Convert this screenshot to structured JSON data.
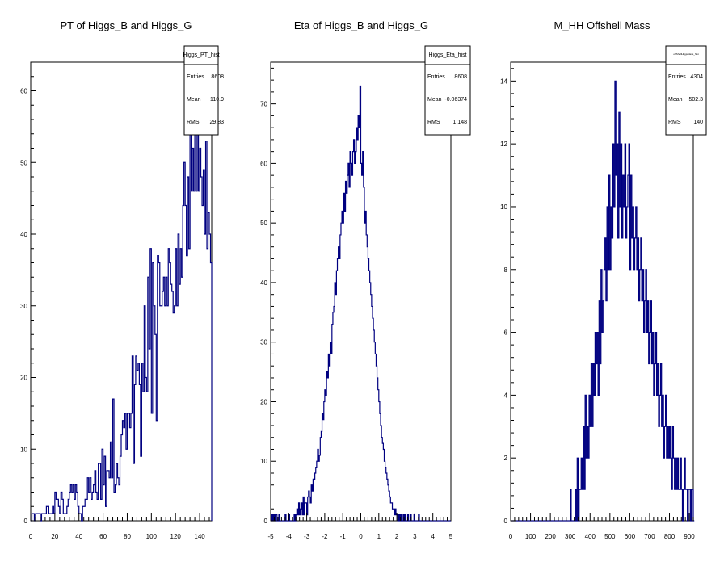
{
  "colors": {
    "histogram": "#000080",
    "frame": "#000000",
    "background": "#ffffff"
  },
  "chart_data": [
    {
      "type": "histogram",
      "title": "PT of Higgs_B and Higgs_G",
      "xlabel": "",
      "ylabel": "",
      "xlim": [
        0,
        150
      ],
      "ylim": [
        0,
        64
      ],
      "xticks": [
        0,
        20,
        40,
        60,
        80,
        100,
        120,
        140
      ],
      "yticks": [
        0,
        10,
        20,
        30,
        40,
        50,
        60
      ],
      "bins": {
        "start": 0,
        "width": 1
      },
      "values": [
        0,
        1,
        1,
        0,
        1,
        1,
        1,
        1,
        0,
        1,
        1,
        1,
        1,
        2,
        2,
        1,
        1,
        1,
        2,
        1,
        4,
        3,
        3,
        2,
        1,
        4,
        3,
        1,
        1,
        1,
        2,
        3,
        4,
        5,
        4,
        5,
        3,
        5,
        4,
        2,
        1,
        1,
        0,
        2,
        2,
        3,
        3,
        6,
        4,
        6,
        3,
        4,
        5,
        7,
        4,
        3,
        8,
        8,
        3,
        10,
        5,
        9,
        2,
        7,
        7,
        6,
        11,
        6,
        17,
        4,
        5,
        8,
        6,
        5,
        9,
        12,
        14,
        13,
        15,
        10,
        15,
        15,
        13,
        15,
        23,
        8,
        19,
        23,
        21,
        22,
        19,
        9,
        22,
        18,
        30,
        20,
        18,
        34,
        24,
        38,
        15,
        36,
        30,
        26,
        14,
        37,
        36,
        30,
        30,
        32,
        34,
        30,
        34,
        30,
        38,
        36,
        33,
        32,
        29,
        30,
        38,
        30,
        40,
        33,
        38,
        34,
        44,
        50,
        44,
        37,
        48,
        38,
        58,
        46,
        52,
        46,
        55,
        46,
        54,
        46,
        52,
        48,
        44,
        49,
        40,
        53,
        38,
        43,
        40,
        36
      ],
      "stats": {
        "name": "Higgs_PT_hist",
        "rows": [
          [
            "Entries",
            "8608"
          ],
          [
            "Mean",
            "110.9"
          ],
          [
            "RMS",
            "29.83"
          ]
        ]
      }
    },
    {
      "type": "histogram",
      "title": "Eta of Higgs_B and Higgs_G",
      "xlabel": "",
      "ylabel": "",
      "xlim": [
        -5,
        5
      ],
      "ylim": [
        0,
        77
      ],
      "xticks": [
        -5,
        -4,
        -3,
        -2,
        -1,
        0,
        1,
        2,
        3,
        4,
        5
      ],
      "yticks": [
        0,
        10,
        20,
        30,
        40,
        50,
        60,
        70
      ],
      "bins": {
        "start": -5,
        "width": 0.05
      },
      "values": [
        0,
        1,
        0,
        1,
        0,
        1,
        1,
        0,
        0,
        1,
        0,
        0,
        0,
        0,
        0,
        0,
        1,
        0,
        0,
        0,
        1,
        0,
        0,
        0,
        0,
        0,
        1,
        0,
        1,
        2,
        1,
        3,
        1,
        2,
        3,
        1,
        4,
        1,
        3,
        3,
        1,
        4,
        5,
        4,
        3,
        6,
        5,
        7,
        7,
        8,
        9,
        10,
        12,
        10,
        11,
        14,
        15,
        18,
        17,
        20,
        22,
        21,
        25,
        24,
        28,
        26,
        30,
        28,
        33,
        35,
        36,
        40,
        38,
        42,
        44,
        46,
        44,
        48,
        50,
        52,
        50,
        55,
        52,
        57,
        55,
        58,
        60,
        56,
        62,
        60,
        58,
        62,
        64,
        60,
        62,
        66,
        64,
        68,
        66,
        73,
        60,
        58,
        62,
        56,
        50,
        52,
        48,
        46,
        44,
        42,
        40,
        38,
        36,
        34,
        32,
        30,
        28,
        26,
        24,
        22,
        20,
        18,
        16,
        14,
        13,
        12,
        10,
        9,
        8,
        7,
        6,
        5,
        4,
        3,
        3,
        2,
        2,
        1,
        2,
        1,
        1,
        0,
        1,
        0,
        1,
        0,
        0,
        1,
        0,
        1,
        0,
        0,
        1,
        0,
        0,
        1,
        0,
        0,
        0,
        1,
        0,
        0,
        0,
        0,
        1,
        0,
        0,
        0,
        0,
        0,
        0,
        0,
        0,
        0,
        0,
        0,
        0,
        0,
        0,
        0,
        0,
        0,
        0,
        0,
        0,
        0,
        0,
        0,
        0,
        0,
        0,
        0,
        0,
        0,
        0,
        0,
        0,
        0,
        0,
        0
      ],
      "stats": {
        "name": "Higgs_Eta_hist",
        "rows": [
          [
            "Entries",
            "8608"
          ],
          [
            "Mean",
            "-0.06374"
          ],
          [
            "RMS",
            "1.148"
          ]
        ]
      }
    },
    {
      "type": "histogram",
      "title": "M_HH Offshell Mass",
      "xlabel": "",
      "ylabel": "",
      "xlim": [
        0,
        920
      ],
      "ylim": [
        0,
        14.6
      ],
      "xticks": [
        0,
        100,
        200,
        300,
        400,
        500,
        600,
        700,
        800,
        900
      ],
      "yticks": [
        0,
        2,
        4,
        6,
        8,
        10,
        12,
        14
      ],
      "bins": {
        "start": 0,
        "width": 5
      },
      "values": [
        0,
        0,
        0,
        0,
        0,
        0,
        0,
        0,
        0,
        0,
        0,
        0,
        0,
        0,
        0,
        0,
        0,
        0,
        0,
        0,
        0,
        0,
        0,
        0,
        0,
        0,
        0,
        0,
        0,
        0,
        0,
        0,
        0,
        0,
        0,
        0,
        0,
        0,
        0,
        0,
        0,
        0,
        0,
        0,
        0,
        0,
        0,
        0,
        0,
        0,
        0,
        0,
        0,
        0,
        0,
        0,
        0,
        0,
        0,
        0,
        1,
        0,
        0,
        0,
        0,
        1,
        0,
        2,
        0,
        1,
        1,
        2,
        1,
        3,
        1,
        4,
        2,
        3,
        2,
        4,
        3,
        5,
        3,
        5,
        4,
        6,
        5,
        6,
        4,
        7,
        5,
        8,
        6,
        7,
        8,
        9,
        7,
        10,
        8,
        11,
        8,
        10,
        9,
        12,
        10,
        14,
        11,
        12,
        9,
        13,
        10,
        12,
        9,
        11,
        10,
        12,
        9,
        10,
        11,
        12,
        8,
        11,
        9,
        10,
        8,
        9,
        10,
        8,
        9,
        7,
        8,
        9,
        7,
        8,
        6,
        7,
        8,
        6,
        7,
        5,
        6,
        7,
        5,
        6,
        4,
        5,
        6,
        4,
        5,
        3,
        4,
        5,
        3,
        4,
        2,
        3,
        4,
        2,
        3,
        2,
        3,
        2,
        1,
        3,
        2,
        1,
        2,
        1,
        2,
        1,
        1,
        2,
        1,
        0,
        1,
        2,
        1,
        1,
        0,
        1,
        1,
        0,
        1,
        1,
        0
      ],
      "stats": {
        "name": "offShellHiggsMass_hist",
        "rows": [
          [
            "Entries",
            "4304"
          ],
          [
            "Mean",
            "502.3"
          ],
          [
            "RMS",
            "140"
          ]
        ]
      }
    }
  ]
}
